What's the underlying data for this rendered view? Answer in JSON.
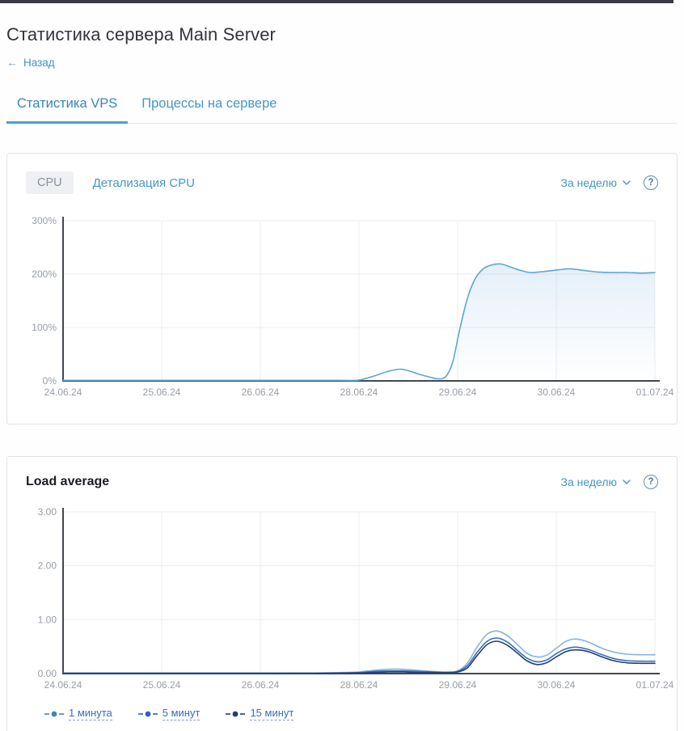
{
  "header": {
    "title": "Статистика сервера Main Server",
    "back": {
      "arrow": "←",
      "label": "Назад"
    }
  },
  "tabs": [
    {
      "label": "Статистика VPS",
      "active": true
    },
    {
      "label": "Процессы на сервере",
      "active": false
    }
  ],
  "cpu_card": {
    "cpu_button": "CPU",
    "detail_link": "Детализация CPU",
    "period": "За неделю",
    "help": "?"
  },
  "load_card": {
    "title": "Load average",
    "period": "За неделю",
    "help": "?"
  },
  "colors": {
    "accent_blue": "#4596c7",
    "tab_underline": "#4d9fd0",
    "grid": "#ececef",
    "axis": "#43474e",
    "cpu_line": "#5ba6d5"
  },
  "chart_data": [
    {
      "type": "area",
      "name": "cpu-usage",
      "title": "CPU",
      "x_tick_labels": [
        "24.06.24",
        "25.06.24",
        "26.06.24",
        "28.06.24",
        "29.06.24",
        "30.06.24",
        "01.07.24"
      ],
      "x_range": [
        0,
        6
      ],
      "ylim": [
        0,
        300
      ],
      "y_ticks": [
        {
          "value": 0,
          "label": "0%"
        },
        {
          "value": 100,
          "label": "100%"
        },
        {
          "value": 200,
          "label": "200%"
        },
        {
          "value": 300,
          "label": "300%"
        }
      ],
      "grid": true,
      "legend_position": "none",
      "series": [
        {
          "name": "CPU",
          "color": "#5ba6d5",
          "fill_from": "rgba(123,176,221,0.20)",
          "fill_to": "rgba(123,176,221,0.0)",
          "points": [
            [
              0,
              1
            ],
            [
              0.5,
              1
            ],
            [
              1,
              1
            ],
            [
              1.5,
              1
            ],
            [
              2,
              1
            ],
            [
              2.5,
              1
            ],
            [
              2.8,
              1
            ],
            [
              2.98,
              1
            ],
            [
              3.08,
              5
            ],
            [
              3.2,
              12
            ],
            [
              3.3,
              18
            ],
            [
              3.42,
              22
            ],
            [
              3.52,
              18
            ],
            [
              3.62,
              12
            ],
            [
              3.72,
              7
            ],
            [
              3.8,
              4
            ],
            [
              3.88,
              8
            ],
            [
              3.95,
              35
            ],
            [
              4.02,
              95
            ],
            [
              4.1,
              155
            ],
            [
              4.18,
              192
            ],
            [
              4.26,
              210
            ],
            [
              4.34,
              217
            ],
            [
              4.44,
              219
            ],
            [
              4.54,
              213
            ],
            [
              4.64,
              207
            ],
            [
              4.74,
              203
            ],
            [
              4.88,
              205
            ],
            [
              5.02,
              208
            ],
            [
              5.14,
              210
            ],
            [
              5.28,
              207
            ],
            [
              5.42,
              204
            ],
            [
              5.58,
              203
            ],
            [
              5.72,
              203
            ],
            [
              5.86,
              202
            ],
            [
              6,
              203
            ]
          ]
        }
      ]
    },
    {
      "type": "line",
      "name": "load-average",
      "title": "Load average",
      "x_tick_labels": [
        "24.06.24",
        "25.06.24",
        "26.06.24",
        "28.06.24",
        "29.06.24",
        "30.06.24",
        "01.07.24"
      ],
      "x_range": [
        0,
        6
      ],
      "ylim": [
        0,
        3
      ],
      "y_ticks": [
        {
          "value": 0,
          "label": "0.00"
        },
        {
          "value": 1,
          "label": "1.00"
        },
        {
          "value": 2,
          "label": "2.00"
        },
        {
          "value": 3,
          "label": "3.00"
        }
      ],
      "grid": true,
      "legend_position": "bottom",
      "series": [
        {
          "name": "1 минута",
          "color": "#85b5dd",
          "marker_color": "#4a7fc0",
          "points": [
            [
              0,
              0.01
            ],
            [
              0.5,
              0.01
            ],
            [
              1,
              0.01
            ],
            [
              1.5,
              0.01
            ],
            [
              2,
              0.01
            ],
            [
              2.5,
              0.01
            ],
            [
              2.85,
              0.02
            ],
            [
              3.0,
              0.03
            ],
            [
              3.15,
              0.06
            ],
            [
              3.3,
              0.08
            ],
            [
              3.45,
              0.08
            ],
            [
              3.6,
              0.06
            ],
            [
              3.75,
              0.04
            ],
            [
              3.88,
              0.03
            ],
            [
              4.0,
              0.05
            ],
            [
              4.1,
              0.2
            ],
            [
              4.2,
              0.5
            ],
            [
              4.3,
              0.73
            ],
            [
              4.4,
              0.79
            ],
            [
              4.5,
              0.71
            ],
            [
              4.6,
              0.55
            ],
            [
              4.7,
              0.38
            ],
            [
              4.8,
              0.31
            ],
            [
              4.9,
              0.34
            ],
            [
              5.0,
              0.47
            ],
            [
              5.1,
              0.6
            ],
            [
              5.2,
              0.64
            ],
            [
              5.32,
              0.59
            ],
            [
              5.45,
              0.48
            ],
            [
              5.58,
              0.4
            ],
            [
              5.72,
              0.36
            ],
            [
              5.86,
              0.35
            ],
            [
              6,
              0.35
            ]
          ]
        },
        {
          "name": "5 минут",
          "color": "#3a6db8",
          "marker_color": "#2f5fc0",
          "points": [
            [
              0,
              0.01
            ],
            [
              0.5,
              0.01
            ],
            [
              1,
              0.01
            ],
            [
              1.5,
              0.01
            ],
            [
              2,
              0.01
            ],
            [
              2.5,
              0.01
            ],
            [
              2.85,
              0.01
            ],
            [
              3.0,
              0.02
            ],
            [
              3.15,
              0.04
            ],
            [
              3.3,
              0.05
            ],
            [
              3.45,
              0.05
            ],
            [
              3.6,
              0.04
            ],
            [
              3.75,
              0.03
            ],
            [
              3.88,
              0.02
            ],
            [
              4.0,
              0.04
            ],
            [
              4.1,
              0.15
            ],
            [
              4.2,
              0.4
            ],
            [
              4.3,
              0.6
            ],
            [
              4.4,
              0.66
            ],
            [
              4.5,
              0.59
            ],
            [
              4.6,
              0.44
            ],
            [
              4.7,
              0.29
            ],
            [
              4.8,
              0.22
            ],
            [
              4.9,
              0.25
            ],
            [
              5.0,
              0.37
            ],
            [
              5.1,
              0.46
            ],
            [
              5.2,
              0.49
            ],
            [
              5.32,
              0.45
            ],
            [
              5.45,
              0.36
            ],
            [
              5.58,
              0.28
            ],
            [
              5.72,
              0.24
            ],
            [
              5.86,
              0.23
            ],
            [
              6,
              0.23
            ]
          ]
        },
        {
          "name": "15 минут",
          "color": "#23406f",
          "marker_color": "#1f3f74",
          "points": [
            [
              0,
              0
            ],
            [
              0.5,
              0
            ],
            [
              1,
              0
            ],
            [
              1.5,
              0
            ],
            [
              2,
              0
            ],
            [
              2.5,
              0
            ],
            [
              2.85,
              0.01
            ],
            [
              3.0,
              0.01
            ],
            [
              3.15,
              0.02
            ],
            [
              3.3,
              0.03
            ],
            [
              3.45,
              0.03
            ],
            [
              3.6,
              0.02
            ],
            [
              3.75,
              0.02
            ],
            [
              3.88,
              0.02
            ],
            [
              4.0,
              0.03
            ],
            [
              4.1,
              0.11
            ],
            [
              4.2,
              0.34
            ],
            [
              4.3,
              0.54
            ],
            [
              4.4,
              0.6
            ],
            [
              4.5,
              0.53
            ],
            [
              4.6,
              0.39
            ],
            [
              4.7,
              0.24
            ],
            [
              4.8,
              0.17
            ],
            [
              4.9,
              0.2
            ],
            [
              5.0,
              0.31
            ],
            [
              5.1,
              0.41
            ],
            [
              5.2,
              0.44
            ],
            [
              5.32,
              0.41
            ],
            [
              5.45,
              0.32
            ],
            [
              5.58,
              0.24
            ],
            [
              5.72,
              0.2
            ],
            [
              5.86,
              0.19
            ],
            [
              6,
              0.19
            ]
          ]
        }
      ]
    }
  ]
}
